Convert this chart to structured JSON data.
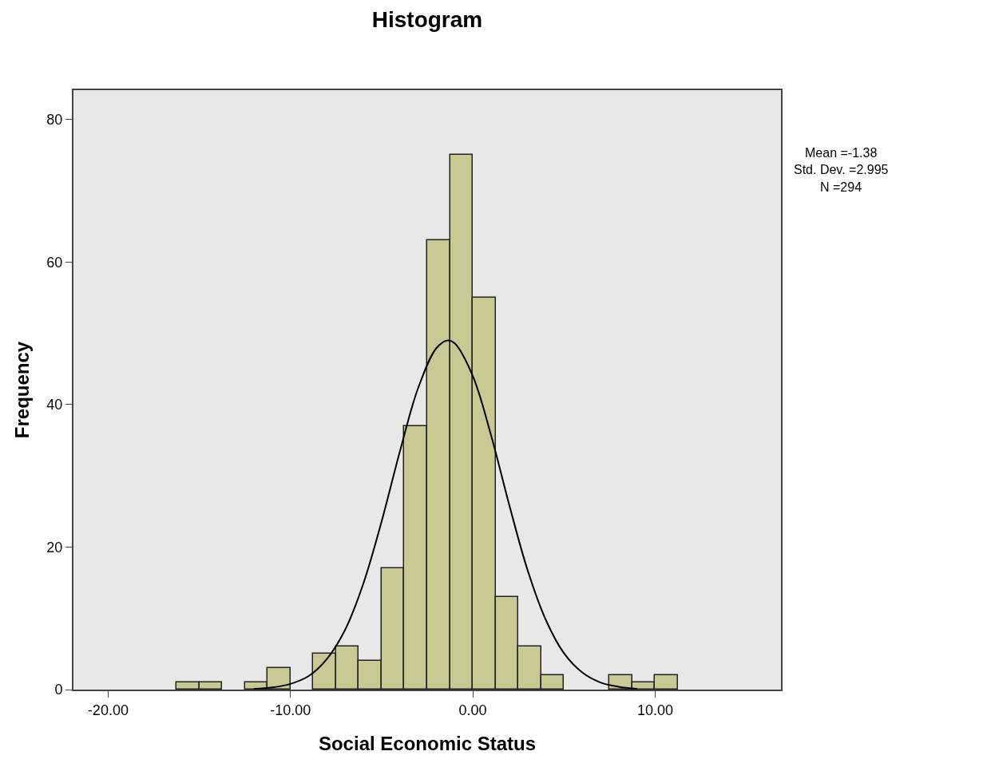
{
  "chart_data": {
    "type": "histogram",
    "title": "Histogram",
    "xlabel": "Social Economic Status",
    "ylabel": "Frequency",
    "bins": [
      -16.25,
      -15,
      -13.75,
      -12.5,
      -11.25,
      -10,
      -8.75,
      -7.5,
      -6.25,
      -5,
      -3.75,
      -2.5,
      -1.25,
      0,
      1.25,
      2.5,
      3.75,
      5,
      6.25,
      7.5,
      8.75,
      10,
      11.25
    ],
    "values": [
      1,
      1,
      0,
      1,
      3,
      0,
      5,
      6,
      4,
      17,
      37,
      63,
      75,
      55,
      13,
      6,
      2,
      0,
      0,
      2,
      1,
      2
    ],
    "color": "#c9c994",
    "series": [
      {
        "type": "line",
        "color": "#000000",
        "x": [
          -12,
          -11,
          -10,
          -9,
          -8,
          -7,
          -6,
          -5,
          -4,
          -3,
          -2,
          -1.38,
          -1,
          0,
          1,
          2,
          3,
          4,
          5,
          6,
          7,
          8,
          9
        ],
        "values": [
          0.1,
          0.3,
          0.8,
          1.9,
          4.3,
          8.4,
          14.9,
          23.6,
          33.4,
          42.3,
          47.9,
          49,
          48.6,
          44,
          35.7,
          25.9,
          16.8,
          9.8,
          5.1,
          2.4,
          1,
          0.4,
          0.1
        ]
      }
    ],
    "xlim": [
      -21.9,
      16.9
    ],
    "ylim": [
      0,
      84.1
    ],
    "xticks": [
      {
        "value": -20,
        "label": "-20.00"
      },
      {
        "value": -10,
        "label": "-10.00"
      },
      {
        "value": 0,
        "label": "0.00"
      },
      {
        "value": 10,
        "label": "10.00"
      }
    ],
    "yticks": [
      0,
      20,
      40,
      60,
      80
    ],
    "annotations": [
      "Mean =-1.38",
      "Std. Dev. =2.995",
      "N =294"
    ],
    "grid": false
  }
}
